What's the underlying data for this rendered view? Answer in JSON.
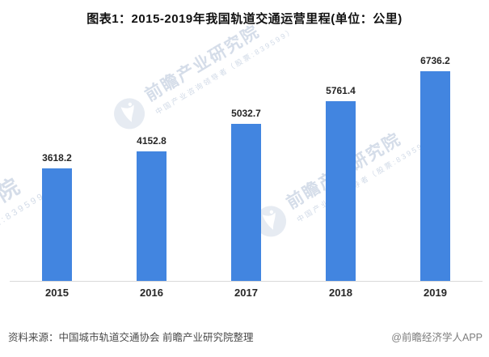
{
  "page": {
    "title": "图表1：2015-2019年我国轨道交通运营里程(单位：公里)"
  },
  "chart_data": {
    "type": "bar",
    "title": "图表1：2015-2019年我国轨道交通运营里程(单位：公里)",
    "unit": "公里",
    "categories": [
      "2015",
      "2016",
      "2017",
      "2018",
      "2019"
    ],
    "values": [
      3618.2,
      4152.8,
      5032.7,
      5761.4,
      6736.2
    ],
    "xlabel": "",
    "ylabel": "",
    "ylim": [
      0,
      7000
    ],
    "grid": false,
    "legend": false,
    "value_labels": true,
    "bar_color": "#4285E0"
  },
  "footer": {
    "source": "资料来源：中国城市轨道交通协会 前瞻产业研究院整理",
    "credit": "@前瞻经济学人APP"
  },
  "watermark": {
    "brand": "前瞻产业研究院",
    "tagline": "中国产业咨询领导者（股票:839599）",
    "logo": "qianzhan-bird-logo"
  },
  "colors": {
    "bar": "#4285E0",
    "axis": "#D9D9D9",
    "title": "#111111",
    "labels": "#262626",
    "source_text": "#4A4A4A",
    "credit_text": "#7D7D7D",
    "watermark": "#B6C3D6"
  }
}
